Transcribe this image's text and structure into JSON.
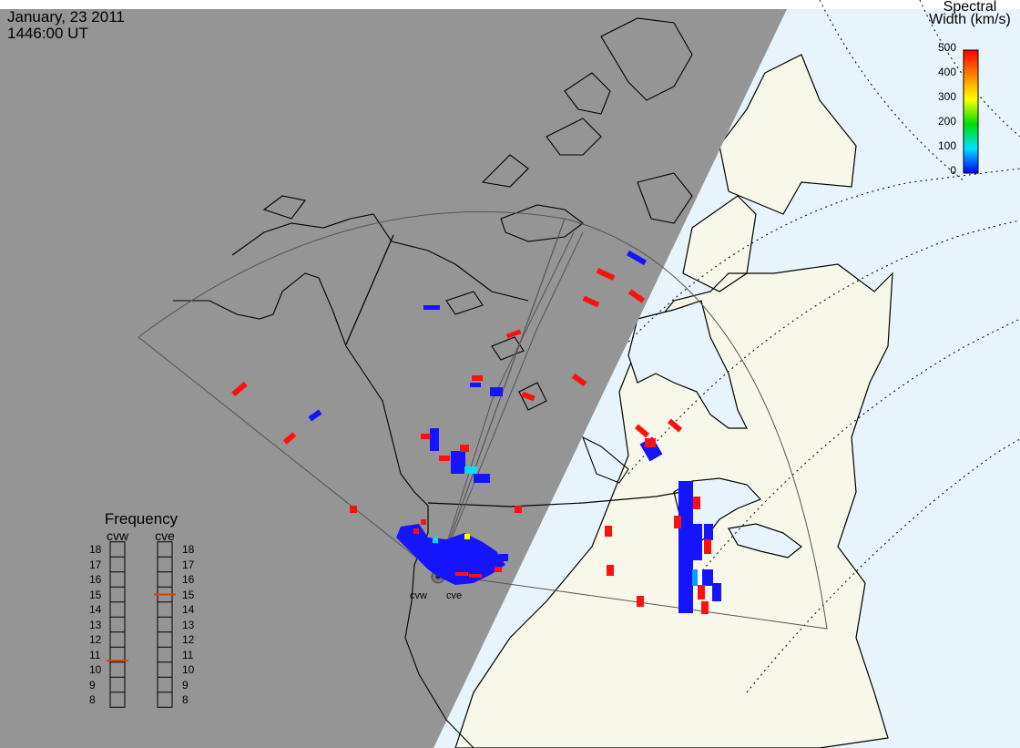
{
  "header": {
    "date": "January, 23 2011",
    "time": "1446:00 UT"
  },
  "colorbar": {
    "title_line1": "Spectral",
    "title_line2": "Width (km/s)",
    "ticks": [
      "500",
      "400",
      "300",
      "200",
      "100",
      "0"
    ],
    "colors": [
      "#ff0000",
      "#ff8000",
      "#ffff00",
      "#00e000",
      "#00e0ff",
      "#0000ff"
    ]
  },
  "frequency": {
    "title": "Frequency",
    "radar_labels": [
      "cvw",
      "cve"
    ],
    "levels": [
      "18",
      "17",
      "16",
      "15",
      "14",
      "13",
      "12",
      "11",
      "10",
      "9",
      "8"
    ],
    "cvw_mhz": 10.6,
    "cve_mhz": 15.0
  },
  "radars": {
    "west": "cvw",
    "east": "cve"
  },
  "colors": {
    "night": "#959595",
    "land_day": "#f8f8ea",
    "ocean_day": "#e8f4fb",
    "scatter_low": "#1414ff",
    "scatter_high": "#ff1010",
    "freq_marker": "#e04000"
  }
}
